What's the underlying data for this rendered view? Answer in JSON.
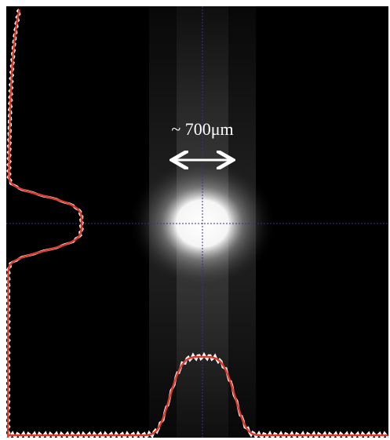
{
  "annotation": "~ 700μm"
}
